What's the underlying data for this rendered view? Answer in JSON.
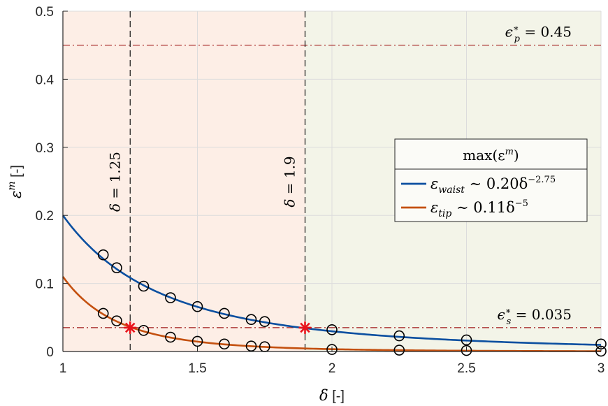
{
  "chart_data": {
    "type": "line",
    "xlabel": {
      "symbol": "δ",
      "unit": "[-]"
    },
    "ylabel": {
      "symbol": "ε",
      "sup": "m",
      "unit": "[-]"
    },
    "xlim": [
      1,
      3
    ],
    "ylim": [
      0,
      0.5
    ],
    "xticks": [
      1,
      1.5,
      2,
      2.5,
      3
    ],
    "xtick_labels": [
      "1",
      "1.5",
      "2",
      "2.5",
      "3"
    ],
    "yticks": [
      0,
      0.1,
      0.2,
      0.3,
      0.4,
      0.5
    ],
    "ytick_labels": [
      "0",
      "0.1",
      "0.2",
      "0.3",
      "0.4",
      "0.5"
    ],
    "grid": true,
    "regions": [
      {
        "x0": 1,
        "x1": 1.9,
        "color": "#fdeee6"
      },
      {
        "x0": 1.9,
        "x1": 3,
        "color": "#f3f4e8"
      }
    ],
    "vlines": [
      {
        "x": 1.25,
        "label": "δ = 1.25"
      },
      {
        "x": 1.9,
        "label": "δ = 1.9"
      }
    ],
    "hlines": [
      {
        "y": 0.45,
        "sym": "ϵ",
        "sub": "p",
        "rest": "= 0.45",
        "color": "#a11a1a"
      },
      {
        "y": 0.035,
        "sym": "ϵ",
        "sub": "s",
        "rest": "= 0.035",
        "color": "#a11a1a"
      }
    ],
    "series": [
      {
        "name": "waist",
        "label_sym": "ε",
        "label_sub": "waist",
        "label_rest": "∼ 0.20δ",
        "label_exp": "−2.75",
        "color": "#0b4fa0",
        "coef": 0.2,
        "exp": -2.75,
        "points": [
          [
            1.15,
            0.142
          ],
          [
            1.2,
            0.123
          ],
          [
            1.3,
            0.096
          ],
          [
            1.4,
            0.079
          ],
          [
            1.5,
            0.066
          ],
          [
            1.6,
            0.056
          ],
          [
            1.7,
            0.047
          ],
          [
            1.75,
            0.044
          ],
          [
            2,
            0.032
          ],
          [
            2.25,
            0.023
          ],
          [
            2.5,
            0.017
          ],
          [
            3,
            0.011
          ]
        ]
      },
      {
        "name": "tip",
        "label_sym": "ε",
        "label_sub": "tip",
        "label_rest": "∼ 0.11δ",
        "label_exp": "−5",
        "color": "#c4500f",
        "coef": 0.11,
        "exp": -5,
        "points": [
          [
            1.15,
            0.056
          ],
          [
            1.2,
            0.045
          ],
          [
            1.3,
            0.031
          ],
          [
            1.4,
            0.021
          ],
          [
            1.5,
            0.015
          ],
          [
            1.6,
            0.011
          ],
          [
            1.7,
            0.008
          ],
          [
            1.75,
            0.007
          ],
          [
            2,
            0.003
          ],
          [
            2.25,
            0.002
          ],
          [
            2.5,
            0.0015
          ],
          [
            3,
            0.0005
          ]
        ]
      }
    ],
    "intersections": [
      [
        1.25,
        0.035
      ],
      [
        1.9,
        0.035
      ]
    ],
    "legend": {
      "title": "max(ε",
      "title_sup": "m",
      "title_end": ")",
      "position": "right"
    }
  }
}
